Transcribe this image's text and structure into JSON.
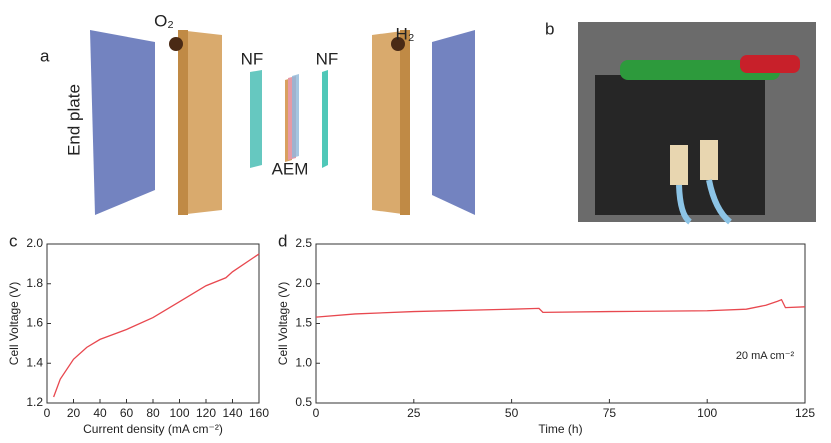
{
  "diagram": {
    "panel_label": "a",
    "end_plate": "End plate",
    "o2": "O₂",
    "h2": "H₂",
    "nf_left": "NF",
    "nf_right": "NF",
    "aem": "AEM"
  },
  "photo": {
    "panel_label": "b"
  },
  "chart_data": [
    {
      "type": "line",
      "panel_label": "c",
      "xlabel": "Current density (mA cm⁻²)",
      "ylabel": "Cell Voltage (V)",
      "xlim": [
        0,
        160
      ],
      "ylim": [
        1.2,
        2.0
      ],
      "xticks": [
        0,
        20,
        40,
        60,
        80,
        100,
        120,
        140,
        160
      ],
      "yticks": [
        {
          "value": 1.2,
          "label": "1.2"
        },
        1.4,
        1.6,
        1.8,
        {
          "value": 2,
          "label": "2.0"
        }
      ],
      "series": [
        {
          "name": "Cell voltage",
          "color": "#e8484f",
          "x": [
            5,
            10,
            20,
            30,
            40,
            60,
            80,
            100,
            120,
            135,
            140,
            160
          ],
          "values": [
            1.23,
            1.32,
            1.42,
            1.48,
            1.52,
            1.57,
            1.63,
            1.71,
            1.79,
            1.83,
            1.86,
            1.95
          ]
        }
      ]
    },
    {
      "type": "line",
      "panel_label": "d",
      "xlabel": "Time (h)",
      "ylabel": "Cell Voltage (V)",
      "annotation": "20 mA cm⁻²",
      "xlim": [
        0,
        125
      ],
      "ylim": [
        0.5,
        2.5
      ],
      "xticks": [
        0,
        25,
        50,
        75,
        100,
        125
      ],
      "yticks": [
        0.5,
        {
          "value": 1,
          "label": "1.0"
        },
        1.5,
        {
          "value": 2,
          "label": "2.0"
        },
        2.5
      ],
      "series": [
        {
          "name": "Cell voltage",
          "color": "#e8484f",
          "x": [
            0,
            10,
            25,
            50,
            57,
            58,
            75,
            100,
            110,
            115,
            118,
            119,
            120,
            125
          ],
          "values": [
            1.58,
            1.62,
            1.65,
            1.68,
            1.69,
            1.64,
            1.65,
            1.66,
            1.68,
            1.73,
            1.78,
            1.8,
            1.7,
            1.71
          ]
        }
      ]
    }
  ]
}
